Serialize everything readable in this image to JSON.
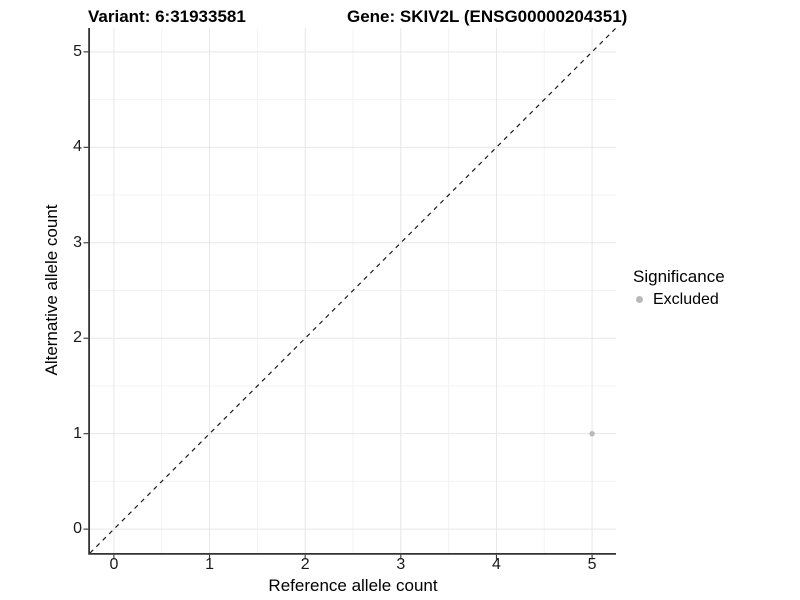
{
  "chart_data": {
    "type": "scatter",
    "title_left": "Variant: 6:31933581",
    "title_right": "Gene: SKIV2L (ENSG00000204351)",
    "xlabel": "Reference allele count",
    "ylabel": "Alternative allele count",
    "xlim": [
      -0.25,
      5.25
    ],
    "ylim": [
      -0.25,
      5.25
    ],
    "xticks": [
      0,
      1,
      2,
      3,
      4,
      5
    ],
    "yticks": [
      0,
      1,
      2,
      3,
      4,
      5
    ],
    "xminor": [
      0.5,
      1.5,
      2.5,
      3.5,
      4.5
    ],
    "yminor": [
      0.5,
      1.5,
      2.5,
      3.5,
      4.5
    ],
    "grid": true,
    "reference_line": {
      "kind": "identity-diagonal",
      "x1": -0.25,
      "y1": -0.25,
      "x2": 5.25,
      "y2": 5.25,
      "style": "dashed",
      "color": "#1a1a1a"
    },
    "series": [
      {
        "name": "Excluded",
        "color": "#b9b9b9",
        "points": [
          {
            "x": 5,
            "y": 1
          }
        ]
      }
    ],
    "legend": {
      "title": "Significance",
      "position": "right",
      "entries": [
        {
          "label": "Excluded",
          "color": "#b9b9b9"
        }
      ]
    },
    "colors": {
      "background": "#ffffff",
      "grid_major": "#e7e7e7",
      "grid_minor": "#f3f3f3",
      "axis_line": "#333333",
      "tick_mark": "#333333",
      "tick_label": "#1a1a1a",
      "title": "#000000",
      "point": "#b9b9b9"
    }
  }
}
